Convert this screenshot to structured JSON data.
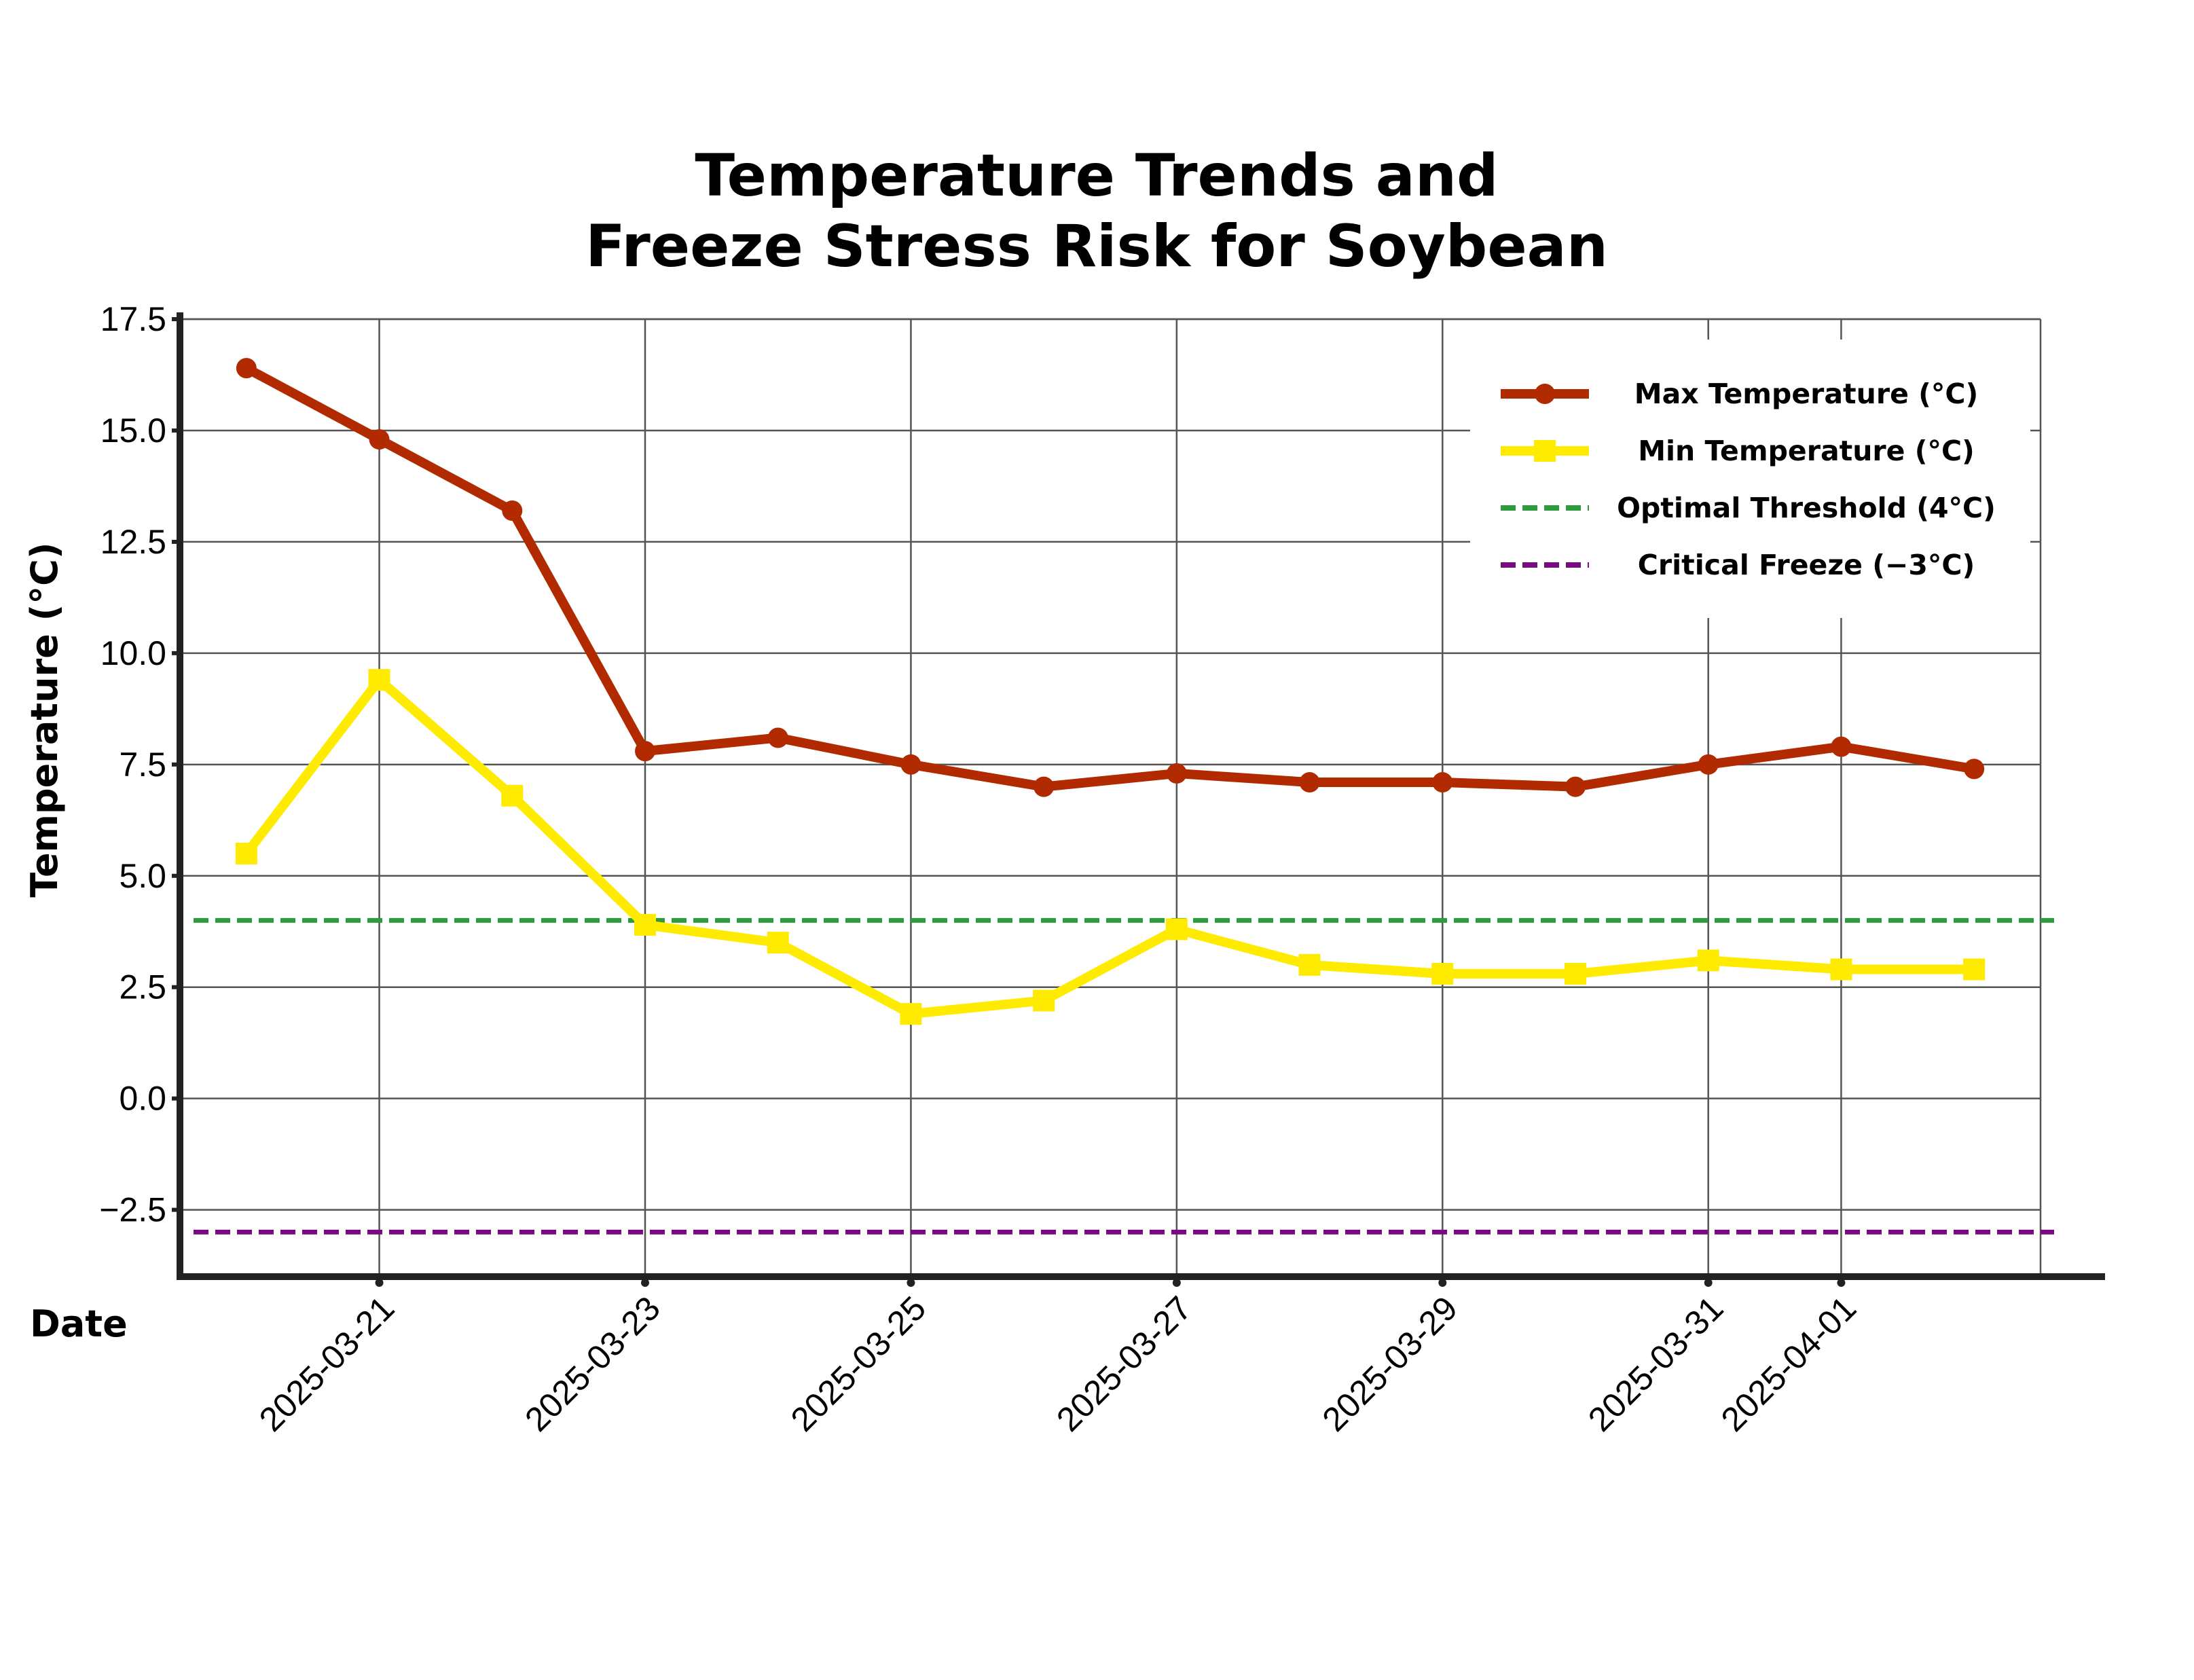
{
  "colors": {
    "max": "#B22A00",
    "min": "#FFEB00",
    "optimal": "#2E9B3C",
    "critical": "#7A0A82",
    "axis": "#222222",
    "grid": "#555555"
  },
  "chart_data": {
    "type": "line",
    "title_lines": [
      "Temperature Trends and",
      "Freeze Stress Risk for Soybean"
    ],
    "xlabel": "Date",
    "ylabel": "Temperature (°C)",
    "ylim": [
      -4.0,
      17.5
    ],
    "xlim": [
      "2025-03-19T12:00",
      "2025-04-02T12:00"
    ],
    "y_ticks": [
      -2.5,
      0.0,
      2.5,
      5.0,
      7.5,
      10.0,
      12.5,
      15.0,
      17.5
    ],
    "y_tick_labels": [
      "−2.5",
      "0.0",
      "2.5",
      "5.0",
      "7.5",
      "10.0",
      "12.5",
      "15.0",
      "17.5"
    ],
    "x_ticks": [
      "2025-03-21",
      "2025-03-23",
      "2025-03-25",
      "2025-03-27",
      "2025-03-29",
      "2025-03-31",
      "2025-04-01"
    ],
    "x_tick_labels": [
      "2025-03-21",
      "2025-03-23",
      "2025-03-25",
      "2025-03-27",
      "2025-03-29",
      "2025-03-31",
      "2025-04-01"
    ],
    "grid": true,
    "legend_position": "top-right",
    "x": [
      "2025-03-20",
      "2025-03-21",
      "2025-03-22",
      "2025-03-23",
      "2025-03-24",
      "2025-03-25",
      "2025-03-26",
      "2025-03-27",
      "2025-03-28",
      "2025-03-29",
      "2025-03-30",
      "2025-03-31",
      "2025-04-01",
      "2025-04-02"
    ],
    "series": [
      {
        "name": "Max Temperature (°C)",
        "marker": "circle",
        "color": "#B22A00",
        "values": [
          16.4,
          14.8,
          13.2,
          7.8,
          8.1,
          7.5,
          7.0,
          7.3,
          7.1,
          7.1,
          7.0,
          7.5,
          7.9,
          7.4
        ]
      },
      {
        "name": "Min Temperature (°C)",
        "marker": "square",
        "color": "#FFEB00",
        "values": [
          5.5,
          9.4,
          6.8,
          3.9,
          3.5,
          1.9,
          2.2,
          3.8,
          3.0,
          2.8,
          2.8,
          3.1,
          2.9,
          2.9
        ]
      }
    ],
    "thresholds": [
      {
        "name": "Optimal Threshold (4°C)",
        "value": 4.0,
        "color": "#2E9B3C",
        "style": "dashed"
      },
      {
        "name": "Critical Freeze (−3°C)",
        "value": -3.0,
        "color": "#7A0A82",
        "style": "dashed"
      }
    ]
  }
}
